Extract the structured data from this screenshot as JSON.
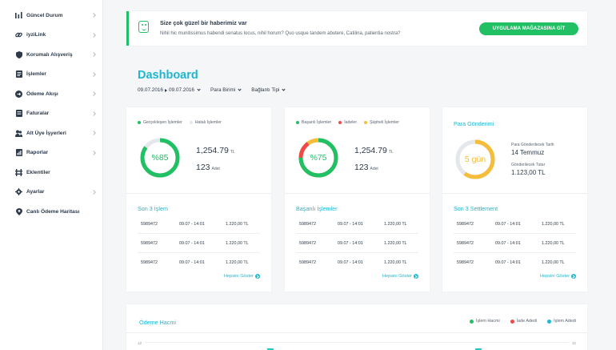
{
  "sidebar": {
    "items": [
      {
        "label": "Güncel Durum",
        "icon": "bar-chart-icon",
        "chevron": true
      },
      {
        "label": "iyziLink",
        "icon": "link-icon",
        "chevron": true
      },
      {
        "label": "Korumalı Alışveriş",
        "icon": "shield-icon",
        "chevron": true
      },
      {
        "label": "İşlemler",
        "icon": "document-list-icon",
        "chevron": true
      },
      {
        "label": "Ödeme Akışı",
        "icon": "flow-icon",
        "chevron": true
      },
      {
        "label": "Faturalar",
        "icon": "invoice-icon",
        "chevron": true
      },
      {
        "label": "Alt Üye İşyerleri",
        "icon": "users-icon",
        "chevron": true
      },
      {
        "label": "Raporlar",
        "icon": "report-icon",
        "chevron": true
      },
      {
        "label": "Eklentiler",
        "icon": "plugin-icon",
        "chevron": false
      },
      {
        "label": "Ayarlar",
        "icon": "gear-icon",
        "chevron": true
      },
      {
        "label": "Canlı Ödeme Haritası",
        "icon": "map-pin-icon",
        "chevron": false
      }
    ]
  },
  "notice": {
    "title": "Size çok güzel bir haberimiz var",
    "text": "Nihil hic munitissimus habendi senatus locus, nihil horum? Quo usque tandem abutere, Catilina, patientia nostra?",
    "button": "UYGULAMA MAĞAZASINA GİT"
  },
  "header": {
    "title": "Dashboard",
    "date_from": "09.07.2016",
    "date_to": "09.07.2016",
    "currency": "Para Birimi",
    "connection": "Bağlantı Tipi"
  },
  "colors": {
    "accent": "#1fb6cf",
    "success": "#21c064",
    "danger": "#ee4a4a",
    "warning": "#f5bd3a",
    "neutral": "#e4e7eb"
  },
  "card1": {
    "legend": [
      "Gerçekleşen İşlemler",
      "Hatalı İşlemler"
    ],
    "percent_label": "%85",
    "percent_value": 85,
    "amount": "1,254.79",
    "amount_unit": "TL",
    "count": "123",
    "count_unit": "Adet",
    "section_title": "Son 3 İşlem",
    "rows": [
      {
        "id": "5989472",
        "date": "09.07 - 14:01",
        "amount": "1.220,00 TL"
      },
      {
        "id": "5989472",
        "date": "09.07 - 14:01",
        "amount": "1.220,00 TL"
      },
      {
        "id": "5989472",
        "date": "09.07 - 14:01",
        "amount": "1.220,00 TL"
      }
    ],
    "more": "Hepsini Göster"
  },
  "card2": {
    "legend": [
      "Başarılı İşlemler",
      "İadeler",
      "Şüpheli İşlemler"
    ],
    "percent_label": "%75",
    "percent_value": 75,
    "amount": "1,254.79",
    "amount_unit": "TL",
    "count": "123",
    "count_unit": "Adet",
    "section_title": "Başarılı İşlemler",
    "rows": [
      {
        "id": "5989472",
        "date": "09.07 - 14:01",
        "amount": "1.220,00 TL"
      },
      {
        "id": "5989472",
        "date": "09.07 - 14:01",
        "amount": "1.220,00 TL"
      },
      {
        "id": "5989472",
        "date": "09.07 - 14:01",
        "amount": "1.220,00 TL"
      }
    ],
    "more": "Hepsini Göster"
  },
  "card3": {
    "title": "Para Gönderimi",
    "days_label": "5 gün",
    "days_fraction": 0.6,
    "date_label": "Para Gönderilecek Tarih",
    "date_value": "14 Temmuz",
    "amount_label": "Gönderilecek Tutar",
    "amount_value": "1.123,00 TL",
    "section_title": "Son 3 Settlement",
    "rows": [
      {
        "id": "5989472",
        "date": "09.07 - 14:01",
        "amount": "1.220,00 TL"
      },
      {
        "id": "5989472",
        "date": "09.07 - 14:01",
        "amount": "1.220,00 TL"
      },
      {
        "id": "5989472",
        "date": "09.07 - 14:01",
        "amount": "1.220,00 TL"
      }
    ],
    "more": "Hepsini Göster"
  },
  "volume": {
    "title": "Ödeme Hacmi",
    "legend": [
      "İşlem Hacmi",
      "İade Adedi",
      "İşlem Adedi"
    ],
    "y_label_left": "12",
    "y_label_right": "12"
  }
}
